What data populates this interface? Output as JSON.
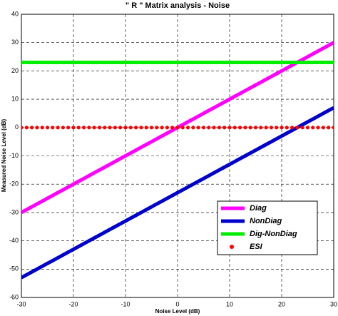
{
  "chart_data": {
    "type": "line",
    "title": "\" R \" Matrix analysis -  Noise",
    "x_label": "Noise Level (dB)",
    "y_label": "Measured Noise Level (dB)",
    "x": [
      -30,
      -29,
      -28,
      -27,
      -26,
      -25,
      -24,
      -23,
      -22,
      -21,
      -20,
      -19,
      -18,
      -17,
      -16,
      -15,
      -14,
      -13,
      -12,
      -11,
      -10,
      -9,
      -8,
      -7,
      -6,
      -5,
      -4,
      -3,
      -2,
      -1,
      0,
      1,
      2,
      3,
      4,
      5,
      6,
      7,
      8,
      9,
      10,
      11,
      12,
      13,
      14,
      15,
      16,
      17,
      18,
      19,
      20,
      21,
      22,
      23,
      24,
      25,
      26,
      27,
      28,
      29,
      30
    ],
    "series": [
      {
        "name": "Diag",
        "color": "#ff00ff",
        "style": "line",
        "values": [
          -30,
          -29,
          -28,
          -27,
          -26,
          -25,
          -24,
          -23,
          -22,
          -21,
          -20,
          -19,
          -18,
          -17,
          -16,
          -15,
          -14,
          -13,
          -12,
          -11,
          -10,
          -9,
          -8,
          -7,
          -6,
          -5,
          -4,
          -3,
          -2,
          -1,
          0,
          1,
          2,
          3,
          4,
          5,
          6,
          7,
          8,
          9,
          10,
          11,
          12,
          13,
          14,
          15,
          16,
          17,
          18,
          19,
          20,
          21,
          22,
          23,
          24,
          25,
          26,
          27,
          28,
          29,
          30
        ]
      },
      {
        "name": "NonDiag",
        "color": "#0000cc",
        "style": "line",
        "values": [
          -53,
          -52,
          -51,
          -50,
          -49,
          -48,
          -47,
          -46,
          -45,
          -44,
          -43,
          -42,
          -41,
          -40,
          -39,
          -38,
          -37,
          -36,
          -35,
          -34,
          -33,
          -32,
          -31,
          -30,
          -29,
          -28,
          -27,
          -26,
          -25,
          -24,
          -23,
          -22,
          -21,
          -20,
          -19,
          -18,
          -17,
          -16,
          -15,
          -14,
          -13,
          -12,
          -11,
          -10,
          -9,
          -8,
          -7,
          -6,
          -5,
          -4,
          -3,
          -2,
          -1,
          0,
          1,
          2,
          3,
          4,
          5,
          6,
          7
        ]
      },
      {
        "name": "Dig-NonDiag",
        "color": "#00ee00",
        "style": "line",
        "values": [
          23,
          23,
          23,
          23,
          23,
          23,
          23,
          23,
          23,
          23,
          23,
          23,
          23,
          23,
          23,
          23,
          23,
          23,
          23,
          23,
          23,
          23,
          23,
          23,
          23,
          23,
          23,
          23,
          23,
          23,
          23,
          23,
          23,
          23,
          23,
          23,
          23,
          23,
          23,
          23,
          23,
          23,
          23,
          23,
          23,
          23,
          23,
          23,
          23,
          23,
          23,
          23,
          23,
          23,
          23,
          23,
          23,
          23,
          23,
          23,
          23
        ]
      },
      {
        "name": "ESI",
        "color": "#ff0000",
        "style": "dots",
        "values": [
          0,
          0,
          0,
          0,
          0,
          0,
          0,
          0,
          0,
          0,
          0,
          0,
          0,
          0,
          0,
          0,
          0,
          0,
          0,
          0,
          0,
          0,
          0,
          0,
          0,
          0,
          0,
          0,
          0,
          0,
          0,
          0,
          0,
          0,
          0,
          0,
          0,
          0,
          0,
          0,
          0,
          0,
          0,
          0,
          0,
          0,
          0,
          0,
          0,
          0,
          0,
          0,
          0,
          0,
          0,
          0,
          0,
          0,
          0,
          0,
          0
        ]
      }
    ],
    "xlim": [
      -30,
      30
    ],
    "xticks": [
      -30,
      -20,
      -10,
      0,
      10,
      20,
      30
    ],
    "ylim": [
      -60,
      40
    ],
    "yticks": [
      -60,
      -50,
      -40,
      -30,
      -20,
      -10,
      0,
      10,
      20,
      30,
      40
    ],
    "grid": true,
    "legend": "lower right"
  }
}
